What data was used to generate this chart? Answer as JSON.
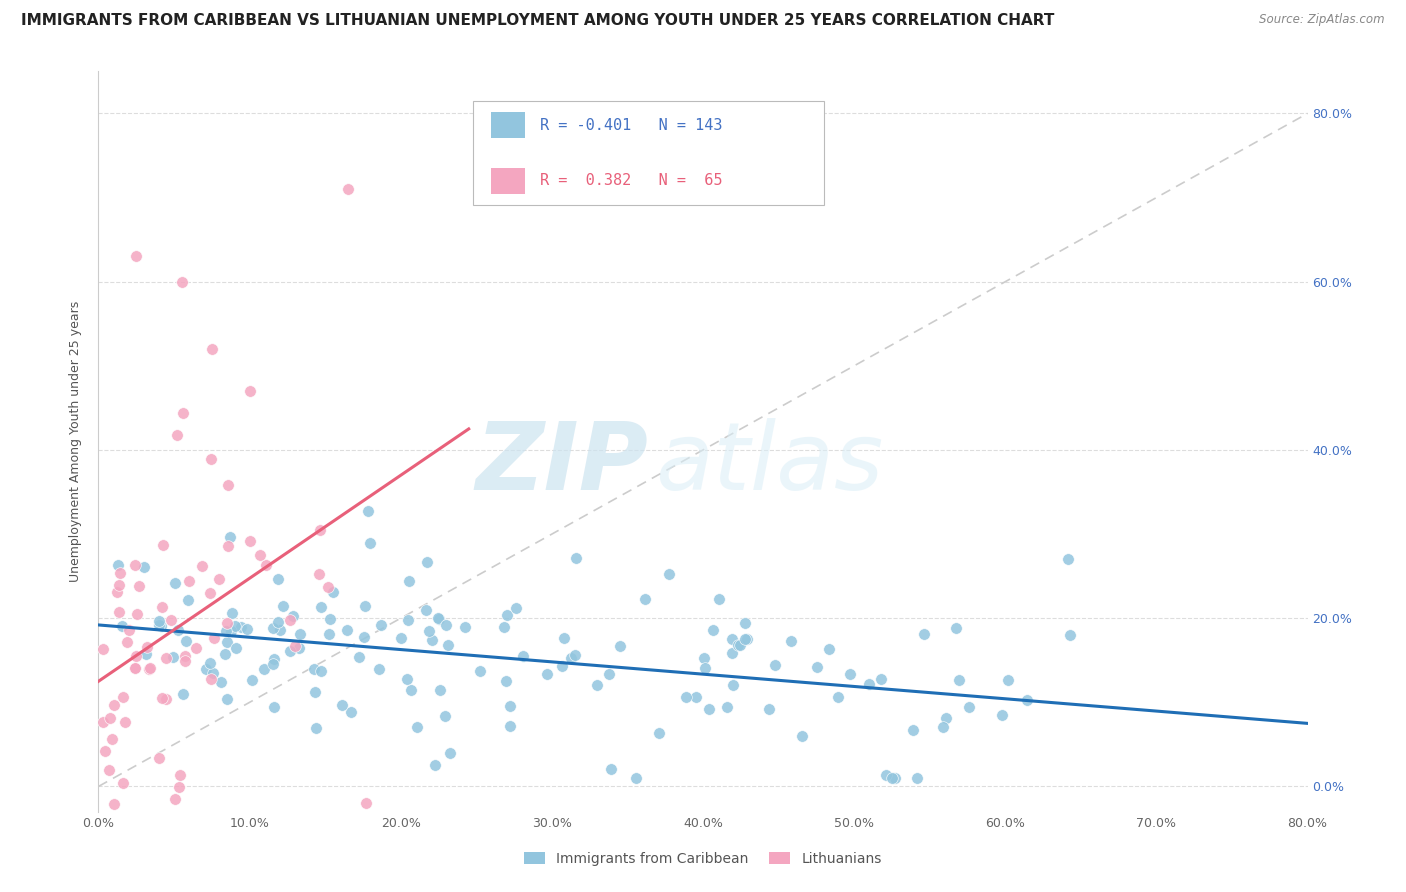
{
  "title": "IMMIGRANTS FROM CARIBBEAN VS LITHUANIAN UNEMPLOYMENT AMONG YOUTH UNDER 25 YEARS CORRELATION CHART",
  "source_text": "Source: ZipAtlas.com",
  "ylabel": "Unemployment Among Youth under 25 years",
  "watermark_zip": "ZIP",
  "watermark_atlas": "atlas",
  "xmin": 0.0,
  "xmax": 0.8,
  "ymin": -0.03,
  "ymax": 0.85,
  "blue_R": -0.401,
  "blue_N": 143,
  "pink_R": 0.382,
  "pink_N": 65,
  "blue_color": "#92c5de",
  "pink_color": "#f4a6c0",
  "blue_line_color": "#1f6eb5",
  "pink_line_color": "#e8607a",
  "diag_color": "#cccccc",
  "legend_label_blue": "Immigrants from Caribbean",
  "legend_label_pink": "Lithuanians",
  "title_fontsize": 11,
  "axis_label_fontsize": 9,
  "tick_fontsize": 9,
  "legend_fontsize": 10,
  "blue_trend_x0": 0.0,
  "blue_trend_x1": 0.8,
  "blue_trend_y0": 0.192,
  "blue_trend_y1": 0.075,
  "pink_trend_x0": 0.0,
  "pink_trend_x1": 0.245,
  "pink_trend_y0": 0.125,
  "pink_trend_y1": 0.425,
  "right_tick_color": "#4472c4"
}
